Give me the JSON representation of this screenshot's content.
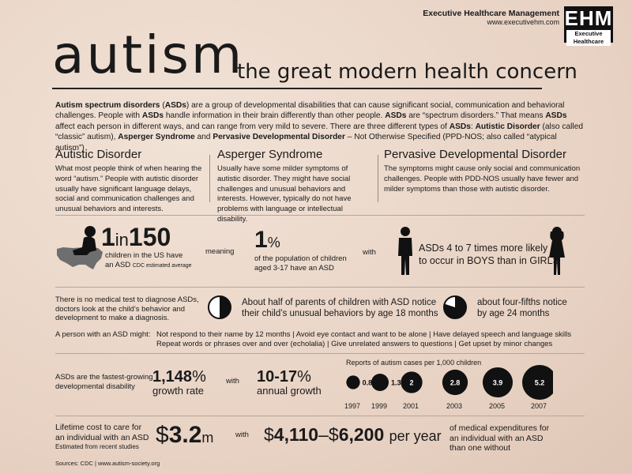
{
  "header": {
    "company": "Executive Healthcare Management",
    "url": "www.executivehm.com",
    "logo_text": "EHM",
    "logo_sub": "Executive Healthcare"
  },
  "title": {
    "main": "autism",
    "subtitle": "the great modern health concern"
  },
  "intro": {
    "p1_bold1": "Autism spectrum disorders",
    "p1_t1": " (",
    "p1_bold2": "ASDs",
    "p1_t2": ") are a group of developmental disabilities that can cause significant social, communication and behavioral challenges. People with ",
    "p1_bold3": "ASDs",
    "p1_t3": " handle information in their brain differently than other people.  ",
    "p1_bold4": "ASDs",
    "p1_t4": " are “spectrum disorders.” That means ",
    "p1_bold5": "ASDs",
    "p1_t5": " affect each person in different ways, and can range from very mild to severe.  There are three different types of ",
    "p1_bold6": "ASDs",
    "p1_t6": ":  ",
    "p1_bold7": "Autistic Disorder",
    "p1_t7": " (also called “classic” autism), ",
    "p1_bold8": "Asperger Syndrome",
    "p1_t8": " and ",
    "p1_bold9": "Pervasive Developmental Disorder",
    "p1_t9": " – Not Otherwise Specified (PPD-NOS; also called “atypical autism”)"
  },
  "types": [
    {
      "title": "Autistic Disorder",
      "text": "What most people think of when hearing the word “autism.” People with autistic disorder usually have significant language delays, social and communication challenges and unusual behaviors and interests."
    },
    {
      "title": "Asperger Syndrome",
      "text": "Usually have some milder symptoms of autistic disorder.  They might have social challenges and unusual behaviors and interests.  However, typically do not have problems with language or intellectual disability."
    },
    {
      "title": "Pervasive Developmental Disorder",
      "text": "The symptoms might cause only social and communication challenges.  People with PDD-NOS usually have fewer and milder symptoms than those with autistic disorder."
    }
  ],
  "prevalence": {
    "num1": "1",
    "in": "in",
    "num2": "150",
    "desc1": "children in the US have",
    "desc2": "an ASD",
    "desc2_small": "CDC estimated average",
    "meaning": "meaning",
    "pct": "1",
    "pct_sign": "%",
    "pct_desc1": "of the population of children",
    "pct_desc2": "aged 3-17 have an ASD",
    "with": "with",
    "boys1": "ASDs 4 to 7 times more likely",
    "boys2": "to occur in BOYS than in GIRLS"
  },
  "diagnosis": {
    "no_test": "There is no medical test to diagnose ASDs, doctors look at the child’s behavior and development to make a diagnosis.",
    "half1": "About half of parents of children with ASD notice",
    "half2": "their child’s unusual behaviors by age 18 months",
    "half_fraction": 0.5,
    "fourfifths1": "about four-fifths notice",
    "fourfifths2": "by age 24 months",
    "fourfifths_fraction": 0.8
  },
  "signs": {
    "label": "A person with an ASD might:",
    "line1": "Not respond to their name by 12 months  |  Avoid eye contact and want to be alone  |  Have delayed speech and language skills",
    "line2": "Repeat words or phrases over and over (echolalia)  |  Give unrelated answers to questions  |  Get upset by minor changes"
  },
  "growth": {
    "label1": "ASDs are the fastest-growing",
    "label2": "developmental disability",
    "rate": "1,148",
    "rate_sign": "%",
    "rate_label": "growth rate",
    "with": "with",
    "annual": "10-17",
    "annual_sign": "%",
    "annual_label": "annual growth",
    "chart_title": "Reports of autism cases per 1,000 children"
  },
  "chart_data": {
    "type": "scatter",
    "title": "Reports of autism cases per 1,000 children",
    "x": [
      "1997",
      "1999",
      "2001",
      "2003",
      "2005",
      "2007"
    ],
    "values": [
      0.8,
      1.3,
      2,
      2.8,
      3.9,
      5.2
    ],
    "labels": [
      "0.8",
      "1.3",
      "2",
      "2.8",
      "3.9",
      "5.2"
    ]
  },
  "cost": {
    "label1": "Lifetime cost to care for",
    "label2": "an individual with an ASD",
    "label3": "Estimated from recent studies",
    "dollar": "$",
    "amount": "3.2",
    "unit": "m",
    "with": "with",
    "d1": "$",
    "a1": "4,110",
    "dash": "–",
    "d2": "$",
    "a2": "6,200",
    "per_year": "per year",
    "exp1": "of medical expenditures for",
    "exp2": "an individual with an ASD",
    "exp3": "than one without"
  },
  "sources": "Sources: CDC | www.autism-society.org",
  "colors": {
    "ink": "#1a1a1a",
    "background": "#ecd9cc",
    "map": "#6e6e6e"
  }
}
